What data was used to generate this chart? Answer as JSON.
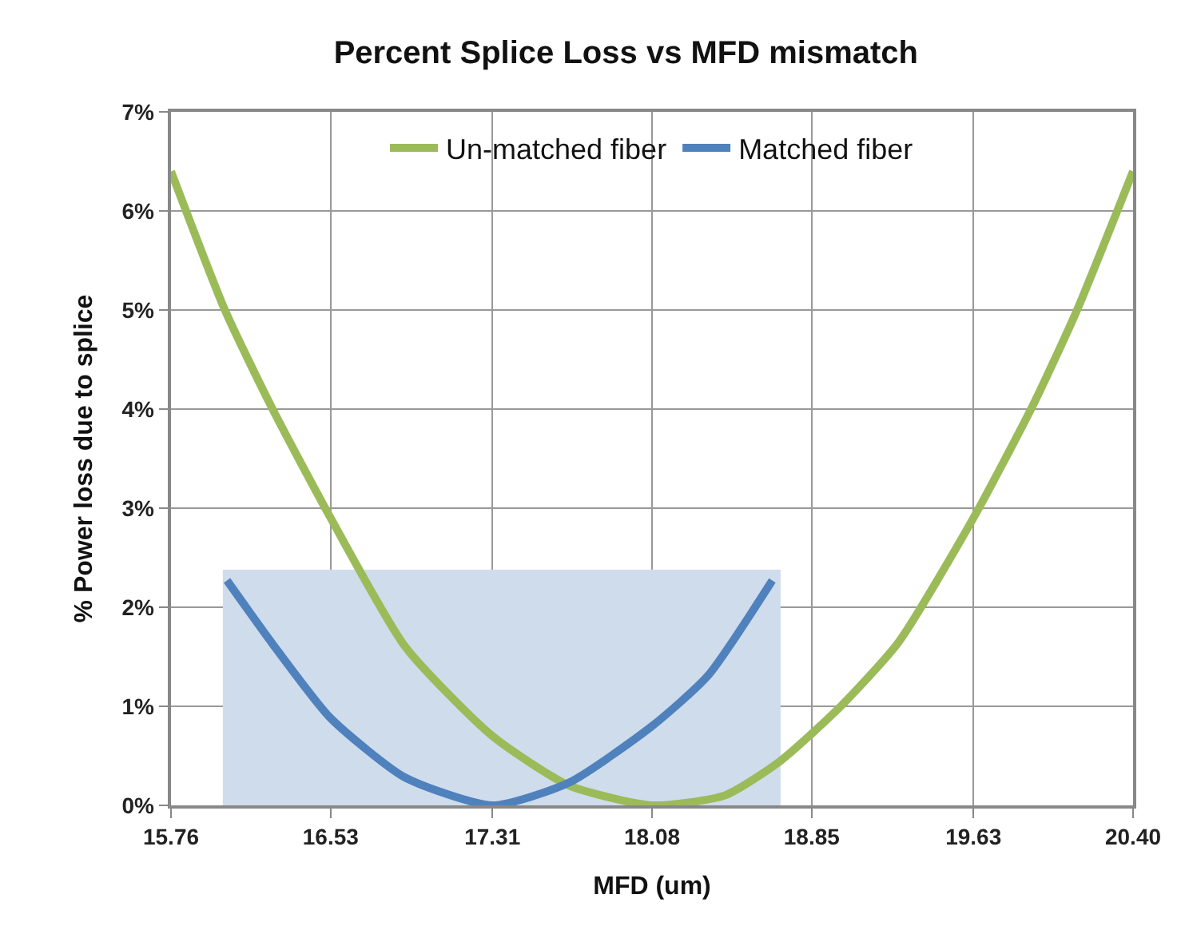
{
  "chart_data": {
    "type": "line",
    "title": "Percent Splice Loss vs MFD mismatch",
    "xlabel": "MFD (um)",
    "ylabel": "% Power loss due to splice",
    "xlim": [
      15.76,
      20.4
    ],
    "xticks": [
      15.76,
      16.53,
      17.31,
      18.08,
      18.85,
      19.63,
      {
        "value": 20.4,
        "label": "20.40"
      }
    ],
    "ylim": [
      0,
      7
    ],
    "yticks": [
      {
        "value": 0,
        "label": "0%"
      },
      {
        "value": 1,
        "label": "1%"
      },
      {
        "value": 2,
        "label": "2%"
      },
      {
        "value": 3,
        "label": "3%"
      },
      {
        "value": 4,
        "label": "4%"
      },
      {
        "value": 5,
        "label": "5%"
      },
      {
        "value": 6,
        "label": "6%"
      },
      {
        "value": 7,
        "label": "7%"
      }
    ],
    "grid": true,
    "legend": "top",
    "line_style": "solid",
    "marker": "none",
    "series": [
      {
        "type": "area",
        "color": "#cfdcec",
        "x": [
          16.01,
          18.7
        ],
        "values": [
          2.38,
          2.38
        ]
      },
      {
        "name": "Un-matched fiber",
        "color": "#9bbb59",
        "x": [
          15.76,
          16.02,
          16.25,
          16.53,
          16.89,
          17.31,
          17.68,
          18.08,
          18.43,
          18.7,
          18.99,
          19.27,
          19.63,
          19.92,
          20.13,
          20.4
        ],
        "values": [
          6.4,
          5.0,
          4.0,
          2.9,
          1.6,
          0.7,
          0.2,
          0,
          0.1,
          0.45,
          1.0,
          1.65,
          2.9,
          4.05,
          5.0,
          6.4
        ]
      },
      {
        "name": "Matched fiber",
        "color": "#4f81bd",
        "x": [
          16.03,
          16.25,
          16.53,
          16.89,
          17.31,
          17.68,
          18.08,
          18.35,
          18.66
        ],
        "values": [
          2.27,
          1.63,
          0.88,
          0.28,
          0,
          0.23,
          0.8,
          1.31,
          2.27
        ]
      }
    ]
  }
}
